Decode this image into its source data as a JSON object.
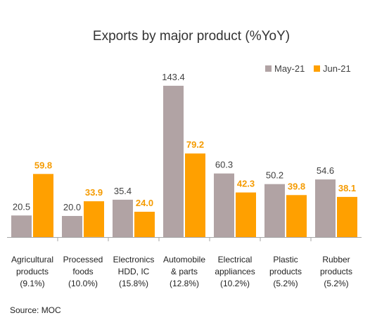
{
  "chart_data": {
    "type": "bar",
    "title": "Exports by major product (%YoY)",
    "categories": [
      [
        "Agricultural",
        "products",
        "(9.1%)"
      ],
      [
        "Processed",
        "foods",
        "(10.0%)"
      ],
      [
        "Electronics",
        "HDD, IC",
        "(15.8%)"
      ],
      [
        "Automobile",
        "& parts",
        "(12.8%)"
      ],
      [
        "Electrical",
        "appliances",
        "(10.2%)"
      ],
      [
        "Plastic",
        "products",
        "(5.2%)"
      ],
      [
        "Rubber",
        "products",
        "(5.2%)"
      ]
    ],
    "series": [
      {
        "name": "May-21",
        "color": "#b1a3a4",
        "label_color": "#404040",
        "values": [
          20.5,
          20.0,
          35.4,
          143.4,
          60.3,
          50.2,
          54.6
        ]
      },
      {
        "name": "Jun-21",
        "color": "#ffa000",
        "label_color": "#f59b00",
        "values": [
          59.8,
          33.9,
          24.0,
          79.2,
          42.3,
          39.8,
          38.1
        ]
      }
    ],
    "ylim": [
      0,
      150
    ],
    "grid": false,
    "legend_position": "top-right",
    "source": "Source: MOC"
  }
}
